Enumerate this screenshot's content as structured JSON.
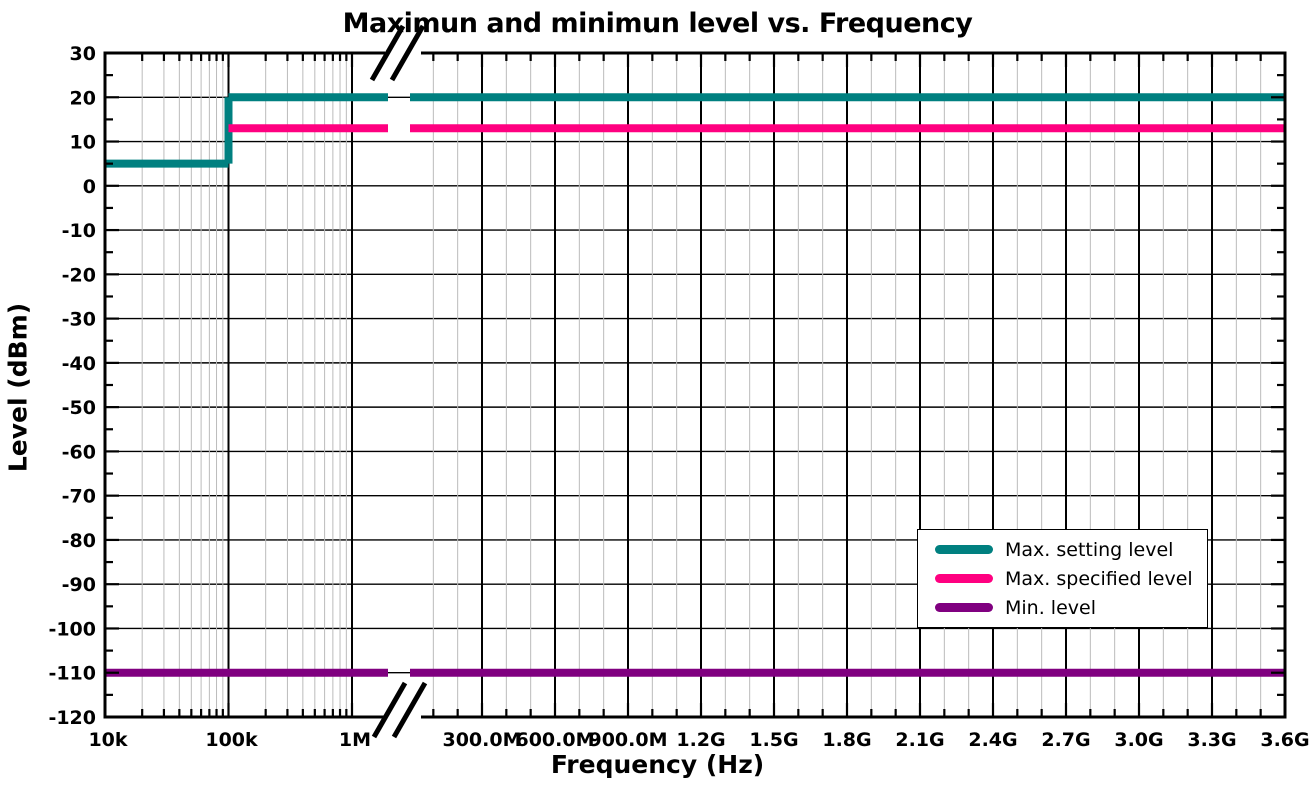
{
  "chart_data": {
    "type": "line",
    "title": "Maximun and minimun level vs. Frequency",
    "xlabel": "Frequency (Hz)",
    "ylabel": "Level (dBm)",
    "grid": {
      "horizontal_major_lines": true,
      "vertical_major_color": "#000000",
      "vertical_minor_color": "#bbbbbb"
    },
    "y_axis": {
      "min": -120,
      "max": 30,
      "major_step": 10,
      "minor_step": 5,
      "ticks": [
        {
          "v": 30,
          "label": "30"
        },
        {
          "v": 20,
          "label": "20"
        },
        {
          "v": 10,
          "label": "10"
        },
        {
          "v": 0,
          "label": "0"
        },
        {
          "v": -10,
          "label": "-10"
        },
        {
          "v": -20,
          "label": "-20"
        },
        {
          "v": -30,
          "label": "-30"
        },
        {
          "v": -40,
          "label": "-40"
        },
        {
          "v": -50,
          "label": "-50"
        },
        {
          "v": -60,
          "label": "-60"
        },
        {
          "v": -70,
          "label": "-70"
        },
        {
          "v": -80,
          "label": "-80"
        },
        {
          "v": -90,
          "label": "-90"
        },
        {
          "v": -100,
          "label": "-100"
        },
        {
          "v": -110,
          "label": "-110"
        },
        {
          "v": -120,
          "label": "-120"
        }
      ]
    },
    "x_axis": {
      "style": "broken axis: logarithmic segment then linear segment, separated by // break marks",
      "log_segment": {
        "min_hz": 10000,
        "max_hz": 2000000,
        "ticks": [
          {
            "hz": 10000,
            "label": "10k"
          },
          {
            "hz": 100000,
            "label": "100k"
          },
          {
            "hz": 1000000,
            "label": "1M"
          }
        ]
      },
      "linear_segment": {
        "min_hz": 100000000,
        "max_hz": 3600000000,
        "major_step_hz": 300000000,
        "minor_step_hz": 100000000,
        "ticks": [
          {
            "hz": 300000000,
            "label": "300.0M"
          },
          {
            "hz": 600000000,
            "label": "600.0M"
          },
          {
            "hz": 900000000,
            "label": "900.0M"
          },
          {
            "hz": 1200000000,
            "label": "1.2G"
          },
          {
            "hz": 1500000000,
            "label": "1.5G"
          },
          {
            "hz": 1800000000,
            "label": "1.8G"
          },
          {
            "hz": 2100000000,
            "label": "2.1G"
          },
          {
            "hz": 2400000000,
            "label": "2.4G"
          },
          {
            "hz": 2700000000,
            "label": "2.7G"
          },
          {
            "hz": 3000000000,
            "label": "3.0G"
          },
          {
            "hz": 3300000000,
            "label": "3.3G"
          },
          {
            "hz": 3600000000,
            "label": "3.6G"
          }
        ]
      },
      "break_marker": "//"
    },
    "series": [
      {
        "name": "Max. setting level",
        "color": "#008080",
        "points": [
          [
            10000,
            5
          ],
          [
            100000,
            5
          ],
          [
            100000,
            20
          ],
          [
            3600000000,
            20
          ]
        ]
      },
      {
        "name": "Max. specified level",
        "color": "#FF0080",
        "points": [
          [
            100000,
            13
          ],
          [
            3600000000,
            13
          ]
        ]
      },
      {
        "name": "Min. level",
        "color": "#800080",
        "points": [
          [
            10000,
            -110
          ],
          [
            3600000000,
            -110
          ]
        ]
      }
    ],
    "legend": {
      "position": "inside plot, right side lower half",
      "entries": [
        "Max. setting level",
        "Max. specified level",
        "Min. level"
      ]
    }
  }
}
